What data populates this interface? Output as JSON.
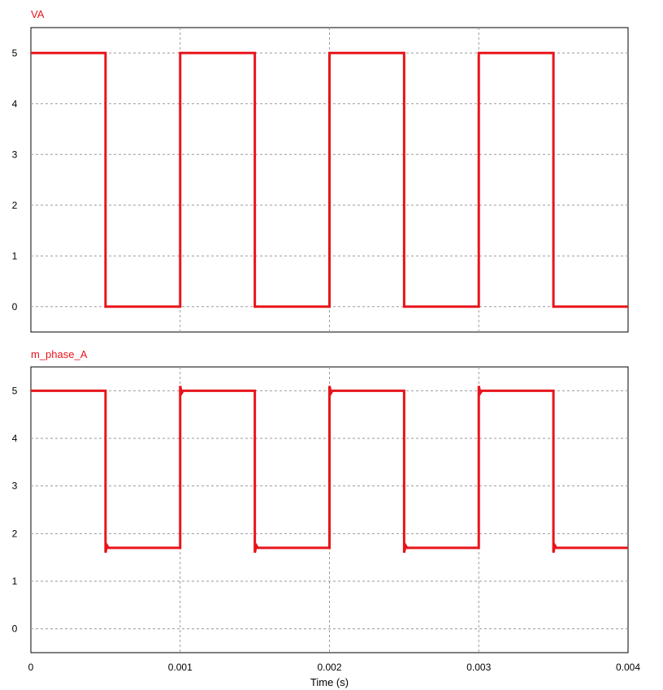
{
  "chart_data": [
    {
      "type": "line",
      "series_color": "#e8141b",
      "ylim": [
        -0.5,
        5.5
      ],
      "yticks": [
        0,
        1,
        2,
        3,
        4,
        5
      ],
      "ytick_labels": [
        "0",
        "1",
        "2",
        "3",
        "4",
        "5"
      ],
      "xlim": [
        0,
        0.004
      ],
      "xticks": [
        0,
        0.001,
        0.002,
        0.003,
        0.004
      ],
      "grid": true,
      "series": [
        {
          "name": "VA",
          "x": [
            0,
            0.0005,
            0.0005,
            0.001,
            0.001,
            0.0015,
            0.0015,
            0.002,
            0.002,
            0.0025,
            0.0025,
            0.003,
            0.003,
            0.0035,
            0.0035,
            0.004
          ],
          "y": [
            5,
            5,
            0,
            0,
            5,
            5,
            0,
            0,
            5,
            5,
            0,
            0,
            5,
            5,
            0,
            0
          ]
        }
      ]
    },
    {
      "type": "line",
      "series_color": "#e8141b",
      "ylim": [
        -0.5,
        5.5
      ],
      "yticks": [
        0,
        1,
        2,
        3,
        4,
        5
      ],
      "ytick_labels": [
        "0",
        "1",
        "2",
        "3",
        "4",
        "5"
      ],
      "xlim": [
        0,
        0.004
      ],
      "xticks": [
        0,
        0.001,
        0.002,
        0.003,
        0.004
      ],
      "xtick_labels": [
        "0",
        "0.001",
        "0.002",
        "0.003",
        "0.004"
      ],
      "xlabel": "Time (s)",
      "grid": true,
      "series": [
        {
          "name": "m_phase_A",
          "x": [
            0,
            0.0005,
            0.0005,
            0.00051,
            0.00052,
            0.001,
            0.001,
            0.00101,
            0.00102,
            0.0015,
            0.0015,
            0.00151,
            0.00152,
            0.002,
            0.002,
            0.00201,
            0.00202,
            0.0025,
            0.0025,
            0.00251,
            0.00252,
            0.003,
            0.003,
            0.00301,
            0.00302,
            0.0035,
            0.0035,
            0.00351,
            0.00352,
            0.004
          ],
          "y": [
            5,
            5,
            1.6,
            1.75,
            1.7,
            1.7,
            5.1,
            4.95,
            5,
            5,
            1.6,
            1.75,
            1.7,
            1.7,
            5.1,
            4.95,
            5,
            5,
            1.6,
            1.75,
            1.7,
            1.7,
            5.1,
            4.95,
            5,
            5,
            1.6,
            1.75,
            1.7,
            1.7
          ]
        }
      ]
    }
  ]
}
